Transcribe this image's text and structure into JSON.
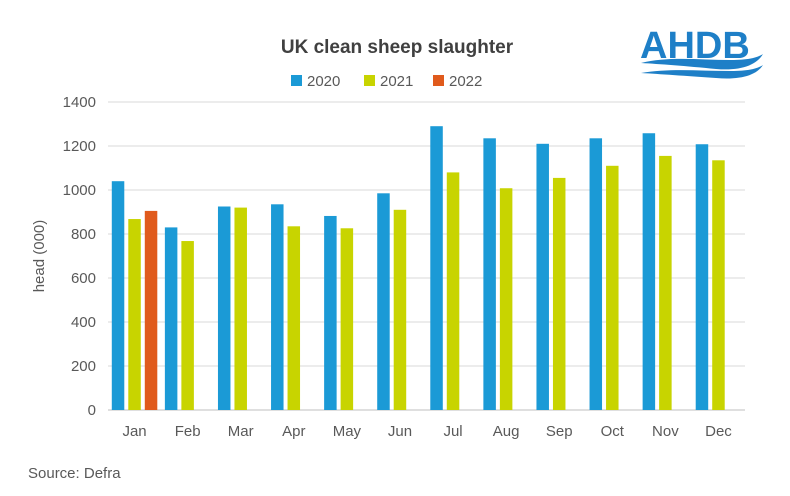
{
  "logo": {
    "text": "AHDB",
    "color": "#1e7fc7"
  },
  "source": {
    "text": "Source: Defra"
  },
  "chart_data": {
    "type": "bar",
    "title": "UK clean sheep slaughter",
    "xlabel": "",
    "ylabel": "head (000)",
    "ylim": [
      0,
      1400
    ],
    "yticks": [
      0,
      200,
      400,
      600,
      800,
      1000,
      1200,
      1400
    ],
    "grid": true,
    "legend_position": "top-center",
    "categories": [
      "Jan",
      "Feb",
      "Mar",
      "Apr",
      "May",
      "Jun",
      "Jul",
      "Aug",
      "Sep",
      "Oct",
      "Nov",
      "Dec"
    ],
    "series": [
      {
        "name": "2020",
        "color": "#1b9ad6",
        "values": [
          1040,
          830,
          925,
          935,
          882,
          985,
          1290,
          1235,
          1210,
          1235,
          1258,
          1208
        ]
      },
      {
        "name": "2021",
        "color": "#c8d400",
        "values": [
          868,
          768,
          920,
          835,
          826,
          910,
          1080,
          1008,
          1055,
          1110,
          1155,
          1135
        ]
      },
      {
        "name": "2022",
        "color": "#e05a1c",
        "values": [
          905,
          null,
          null,
          null,
          null,
          null,
          null,
          null,
          null,
          null,
          null,
          null
        ]
      }
    ]
  }
}
